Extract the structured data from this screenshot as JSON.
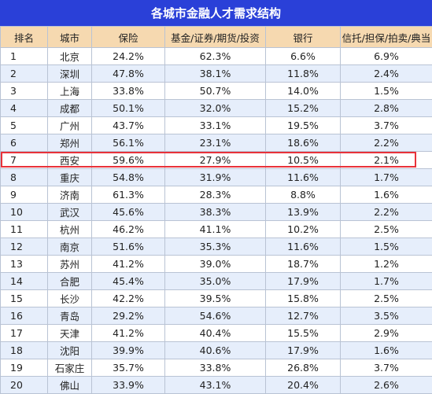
{
  "title": "各城市金融人才需求结构",
  "columns": [
    "排名",
    "城市",
    "保险",
    "基金/证券/期货/投资",
    "银行",
    "信托/担保/拍卖/典当"
  ],
  "rows": [
    [
      "1",
      "北京",
      "24.2%",
      "62.3%",
      "6.6%",
      "6.9%"
    ],
    [
      "2",
      "深圳",
      "47.8%",
      "38.1%",
      "11.8%",
      "2.4%"
    ],
    [
      "3",
      "上海",
      "33.8%",
      "50.7%",
      "14.0%",
      "1.5%"
    ],
    [
      "4",
      "成都",
      "50.1%",
      "32.0%",
      "15.2%",
      "2.8%"
    ],
    [
      "5",
      "广州",
      "43.7%",
      "33.1%",
      "19.5%",
      "3.7%"
    ],
    [
      "6",
      "郑州",
      "56.1%",
      "23.1%",
      "18.6%",
      "2.2%"
    ],
    [
      "7",
      "西安",
      "59.6%",
      "27.9%",
      "10.5%",
      "2.1%"
    ],
    [
      "8",
      "重庆",
      "54.8%",
      "31.9%",
      "11.6%",
      "1.7%"
    ],
    [
      "9",
      "济南",
      "61.3%",
      "28.3%",
      "8.8%",
      "1.6%"
    ],
    [
      "10",
      "武汉",
      "45.6%",
      "38.3%",
      "13.9%",
      "2.2%"
    ],
    [
      "11",
      "杭州",
      "46.2%",
      "41.1%",
      "10.2%",
      "2.5%"
    ],
    [
      "12",
      "南京",
      "51.6%",
      "35.3%",
      "11.6%",
      "1.5%"
    ],
    [
      "13",
      "苏州",
      "41.2%",
      "39.0%",
      "18.7%",
      "1.2%"
    ],
    [
      "14",
      "合肥",
      "45.4%",
      "35.0%",
      "17.9%",
      "1.7%"
    ],
    [
      "15",
      "长沙",
      "42.2%",
      "39.5%",
      "15.8%",
      "2.5%"
    ],
    [
      "16",
      "青岛",
      "29.2%",
      "54.6%",
      "12.7%",
      "3.5%"
    ],
    [
      "17",
      "天津",
      "41.2%",
      "40.4%",
      "15.5%",
      "2.9%"
    ],
    [
      "18",
      "沈阳",
      "39.9%",
      "40.6%",
      "17.9%",
      "1.6%"
    ],
    [
      "19",
      "石家庄",
      "35.7%",
      "33.8%",
      "26.8%",
      "3.7%"
    ],
    [
      "20",
      "佛山",
      "33.9%",
      "43.1%",
      "20.4%",
      "2.6%"
    ]
  ],
  "highlight_color": "#e8323a",
  "header_color": "#2a40d8"
}
